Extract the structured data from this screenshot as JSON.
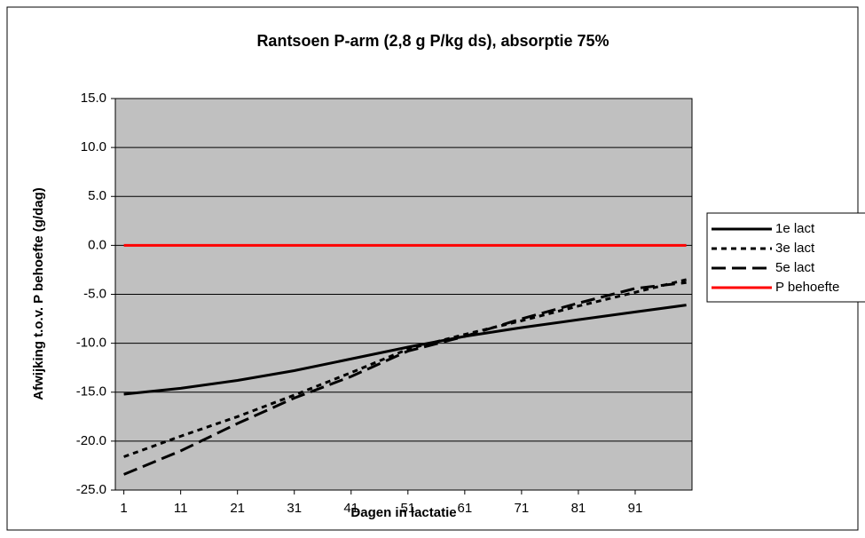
{
  "chart_data": {
    "type": "line",
    "title": "Rantsoen P-arm (2,8 g P/kg ds), absorptie 75%",
    "x_label": "Dagen in lactatie",
    "y_label": "Afwijking t.o.v. P behoefte (g/dag)",
    "x": [
      1,
      11,
      21,
      31,
      41,
      51,
      61,
      71,
      81,
      91,
      100
    ],
    "series": [
      {
        "name": "1e lact",
        "color": "#000000",
        "dash": "none",
        "values": [
          -15.2,
          -14.6,
          -13.8,
          -12.8,
          -11.6,
          -10.4,
          -9.3,
          -8.4,
          -7.6,
          -6.8,
          -6.1
        ]
      },
      {
        "name": "3e lact",
        "color": "#000000",
        "dash": "6,5",
        "values": [
          -21.6,
          -19.5,
          -17.5,
          -15.3,
          -13.0,
          -10.6,
          -9.1,
          -7.7,
          -6.2,
          -4.8,
          -3.5
        ]
      },
      {
        "name": "5e lact",
        "color": "#000000",
        "dash": "16,7",
        "values": [
          -23.4,
          -21.0,
          -18.2,
          -15.6,
          -13.4,
          -10.8,
          -9.3,
          -7.5,
          -5.9,
          -4.4,
          -3.8
        ]
      },
      {
        "name": "P behoefte",
        "color": "#ff0000",
        "dash": "none",
        "values": [
          0,
          0,
          0,
          0,
          0,
          0,
          0,
          0,
          0,
          0,
          0
        ]
      }
    ],
    "xlim": [
      -0.5,
      101
    ],
    "xticks": [
      1,
      11,
      21,
      31,
      41,
      51,
      61,
      71,
      81,
      91
    ],
    "ylim": [
      -25,
      15
    ],
    "yticks": [
      {
        "value": -25,
        "label": "-25.0"
      },
      {
        "value": -20,
        "label": "-20.0"
      },
      {
        "value": -15,
        "label": "-15.0"
      },
      {
        "value": -10,
        "label": "-10.0"
      },
      {
        "value": -5,
        "label": "-5.0"
      },
      {
        "value": 0,
        "label": "0.0"
      },
      {
        "value": 5,
        "label": "5.0"
      },
      {
        "value": 10,
        "label": "10.0"
      },
      {
        "value": 15,
        "label": "15.0"
      }
    ],
    "negative_tick_label_color": "#ff0000",
    "grid": true,
    "plot_background": "#c0c0c0",
    "legend": "right"
  }
}
